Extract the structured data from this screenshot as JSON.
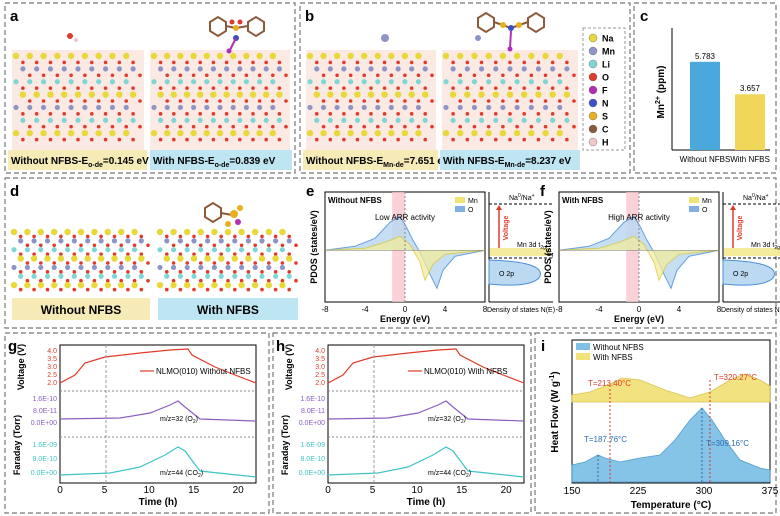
{
  "panels": {
    "a": {
      "letter": "a",
      "left_prefix": "Without NFBS-E",
      "left_sub": "o-de",
      "left_value": "=0.145 eV",
      "right_prefix": "With  NFBS-E",
      "right_sub": "o-de",
      "right_value": "=0.839 eV"
    },
    "b": {
      "letter": "b",
      "left_prefix": "Without NFBS-E",
      "left_sub": "Mn-de",
      "left_value": "=7.651 eV",
      "right_prefix": "With NFBS-E",
      "right_sub": "Mn-de",
      "right_value": "=8.237 eV",
      "legend": [
        {
          "symbol": "Na",
          "color": "#e8d83a"
        },
        {
          "symbol": "Mn",
          "color": "#8f94c8"
        },
        {
          "symbol": "Li",
          "color": "#7fd6d4"
        },
        {
          "symbol": "O",
          "color": "#e03a2a"
        },
        {
          "symbol": "F",
          "color": "#b02fb3"
        },
        {
          "symbol": "N",
          "color": "#3a4fc8"
        },
        {
          "symbol": "S",
          "color": "#e8b020"
        },
        {
          "symbol": "C",
          "color": "#8a5a3a"
        },
        {
          "symbol": "H",
          "color": "#f0c8c8"
        }
      ]
    },
    "c": {
      "letter": "c",
      "chart_data": {
        "type": "bar",
        "categories": [
          "Without NFBS",
          "With NFBS"
        ],
        "values": [
          5.783,
          3.657
        ],
        "value_labels": [
          "5.783",
          "3.657"
        ],
        "ylabel_main": "Mn",
        "ylabel_sup": "2+",
        "ylabel_unit": " (ppm)",
        "colors": [
          "#4aa8dc",
          "#f0d75a"
        ],
        "ylim": [
          0,
          8
        ],
        "grid": false
      }
    },
    "d": {
      "letter": "d",
      "left_label": "Without NFBS",
      "right_label": "With NFBS"
    },
    "e": {
      "letter": "e",
      "title": "Without NFBS",
      "annotation": "Low ARR activity",
      "legend": [
        {
          "name": "Mn",
          "color": "#e8d83a"
        },
        {
          "name": "O",
          "color": "#4a8fd6"
        }
      ],
      "ylabel": "PDOS (states/eV)",
      "xlabel": "Energy (eV)",
      "xticks": [
        "-8",
        "-4",
        "0",
        "4",
        "8"
      ],
      "inset_xlabel": "Density of states N(E)",
      "inset_top_label": "Na",
      "inset_top_sup": "0",
      "inset_top_suffix": "/Na",
      "inset_top_sup2": "+",
      "inset_voltage": "Voltage",
      "inset_mn_label": "Mn 3d t",
      "inset_mn_sub": "2g",
      "inset_ef": "E",
      "inset_ef_sub": "f",
      "inset_o_label": "O 2p"
    },
    "f": {
      "letter": "f",
      "title": "With NFBS",
      "annotation": "High ARR activity",
      "legend": [
        {
          "name": "Mn",
          "color": "#e8d83a"
        },
        {
          "name": "O",
          "color": "#4a8fd6"
        }
      ],
      "ylabel": "PDOS (states/eV)",
      "xlabel": "Energy (eV)",
      "xticks": [
        "-8",
        "-4",
        "0",
        "4",
        "8"
      ],
      "inset_xlabel": "Density of states N(E)",
      "inset_top_label": "Na",
      "inset_top_sup": "0",
      "inset_top_suffix": "/Na",
      "inset_top_sup2": "+",
      "inset_voltage": "Voltage",
      "inset_mn_label": "Mn 3d t",
      "inset_mn_sub": "2g",
      "inset_ef": "E",
      "inset_ef_sub": "f",
      "inset_o_label": "O 2p"
    },
    "g": {
      "letter": "g",
      "legend": "NLMO(010) Without NFBS",
      "voltage_label": "Voltage (V)",
      "faraday_label": "Faraday (Torr)",
      "xlabel": "Time (h)",
      "xticks": [
        "0",
        "5",
        "10",
        "15",
        "20"
      ],
      "v_ticks": [
        "4.0",
        "3.5",
        "3.0",
        "2.5",
        "2.0"
      ],
      "o2_ticks": [
        "1.6E-10",
        "8.0E-11",
        "0.0E+00"
      ],
      "co2_ticks": [
        "1.6E-09",
        "8.0E-10",
        "0.0E+00"
      ],
      "o2_label": "m/z=32 (O",
      "o2_sub": "2",
      "co2_label": "m/z=44 (CO",
      "co2_sub": "2",
      "close": ")"
    },
    "h": {
      "letter": "h",
      "legend": "NLMO(010) With NFBS",
      "voltage_label": "Voltage (V)",
      "faraday_label": "Faraday (Torr)",
      "xlabel": "Time (h)",
      "xticks": [
        "0",
        "5",
        "10",
        "15",
        "20"
      ],
      "v_ticks": [
        "4.0",
        "3.5",
        "3.0",
        "2.5",
        "2.0"
      ],
      "o2_ticks": [
        "1.6E-10",
        "8.0E-11",
        "0.0E+00"
      ],
      "co2_ticks": [
        "1.6E-09",
        "8.0E-10",
        "0.0E+00"
      ],
      "o2_label": "m/z=32 (O",
      "o2_sub": "2",
      "co2_label": "m/z=44 (CO",
      "co2_sub": "2",
      "close": ")"
    },
    "i": {
      "letter": "i",
      "legend": [
        {
          "name": "Without NFBS",
          "color": "#7fc0e6"
        },
        {
          "name": "With NFBS",
          "color": "#f2e27a"
        }
      ],
      "ylabel": "Heat Flow (W g",
      "ylabel_sup": "-1",
      "ylabel_close": ")",
      "xlabel": "Temperature (°C)",
      "xticks": [
        "150",
        "225",
        "300",
        "375"
      ],
      "annotations": [
        {
          "text": "T=213.40°C",
          "color": "#e03a2a"
        },
        {
          "text": "T=320.27°C",
          "color": "#e03a2a"
        },
        {
          "text": "T=187.76°C",
          "color": "#2a6fb0"
        },
        {
          "text": "T=309.16°C",
          "color": "#2a6fb0"
        }
      ]
    }
  }
}
